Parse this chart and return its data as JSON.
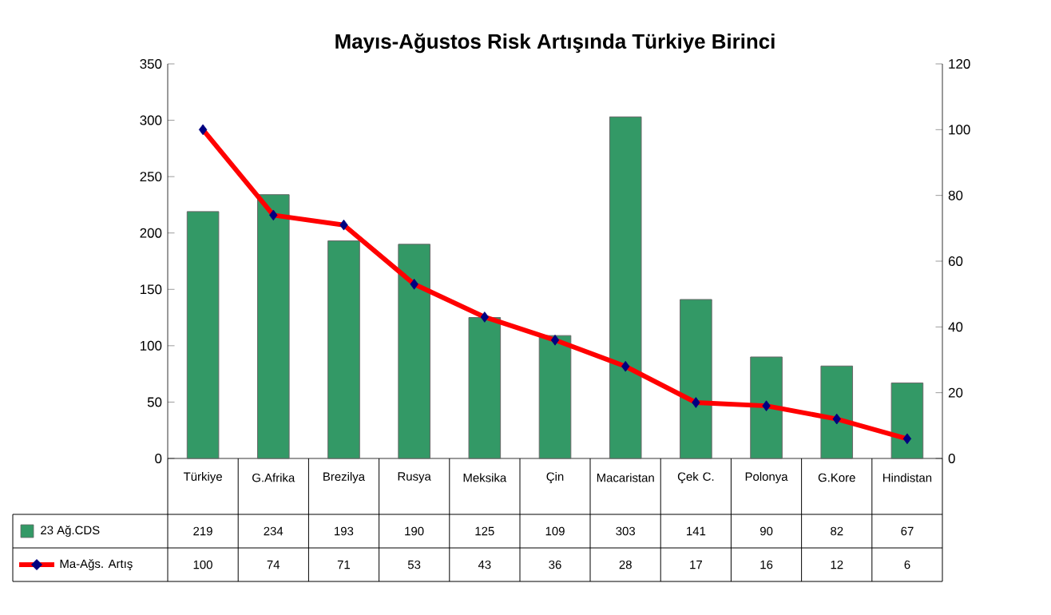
{
  "chart_data": {
    "type": "bar",
    "title": "Mayıs-Ağustos Risk Artışında Türkiye Birinci",
    "categories": [
      "Türkiye",
      "G.Afrika",
      "Brezilya",
      "Rusya",
      "Meksika",
      "Çin",
      "Macaristan",
      "Çek C.",
      "Polonya",
      "G.Kore",
      "Hindistan"
    ],
    "series": [
      {
        "name": "23 Ağ.CDS",
        "color": "#339966",
        "values": [
          219,
          234,
          193,
          190,
          125,
          109,
          303,
          141,
          90,
          82,
          67
        ]
      },
      {
        "name": "Ma-Ağs. Artış",
        "type": "line",
        "axis": "y2",
        "color": "#ff0000",
        "marker": "diamond",
        "values": [
          100,
          74,
          71,
          53,
          43,
          36,
          28,
          17,
          16,
          12,
          6
        ]
      }
    ],
    "ylim": [
      0,
      350
    ],
    "yticks": [
      0,
      50,
      100,
      150,
      200,
      250,
      300,
      350
    ],
    "y2lim": [
      0,
      120
    ],
    "y2ticks": [
      0,
      20,
      40,
      60,
      80,
      100,
      120
    ],
    "data_labels": true,
    "legend": "bottom"
  }
}
